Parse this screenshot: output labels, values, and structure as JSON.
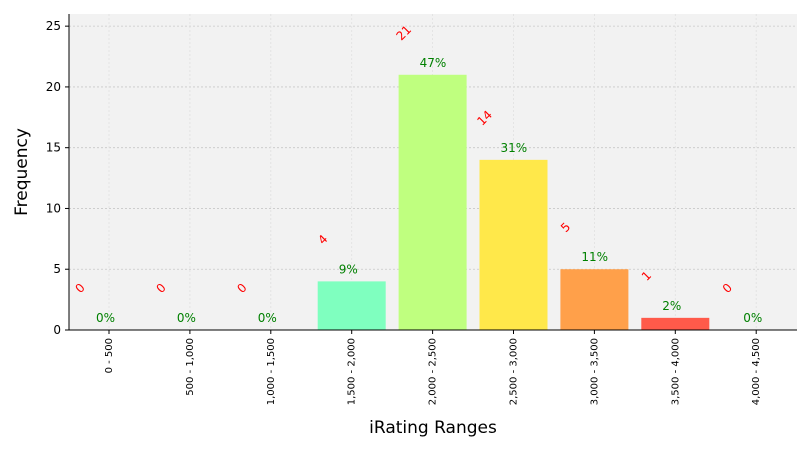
{
  "chart_data": {
    "type": "bar",
    "xlabel": "iRating Ranges",
    "ylabel": "Frequency",
    "ylim": [
      0,
      26
    ],
    "yticks": [
      0,
      5,
      10,
      15,
      20,
      25
    ],
    "ytick_labels": [
      "0",
      "5",
      "10",
      "15",
      "20",
      "25"
    ],
    "grid": true,
    "categories": [
      "0 - 500",
      "500 - 1,000",
      "1,000 - 1,500",
      "1,500 - 2,000",
      "2,000 - 2,500",
      "2,500 - 3,000",
      "3,000 - 3,500",
      "3,500 - 4,000",
      "4,000 - 4,500"
    ],
    "values": [
      0,
      0,
      0,
      4,
      21,
      14,
      5,
      1,
      0
    ],
    "count_labels": [
      "0",
      "0",
      "0",
      "4",
      "21",
      "14",
      "5",
      "1",
      "0"
    ],
    "percent_labels": [
      "0%",
      "0%",
      "0%",
      "9%",
      "47%",
      "31%",
      "11%",
      "2%",
      "0%"
    ],
    "colors": [
      "#7fffbf",
      "#7fffbf",
      "#7fffbf",
      "#7fffbf",
      "#bfff7f",
      "#ffe84a",
      "#ffa04a",
      "#ff5a4a",
      "#ff5a4a"
    ],
    "count_label_color": "#ff0000",
    "percent_label_color": "#008000",
    "plot_background": "#f2f2f2"
  }
}
